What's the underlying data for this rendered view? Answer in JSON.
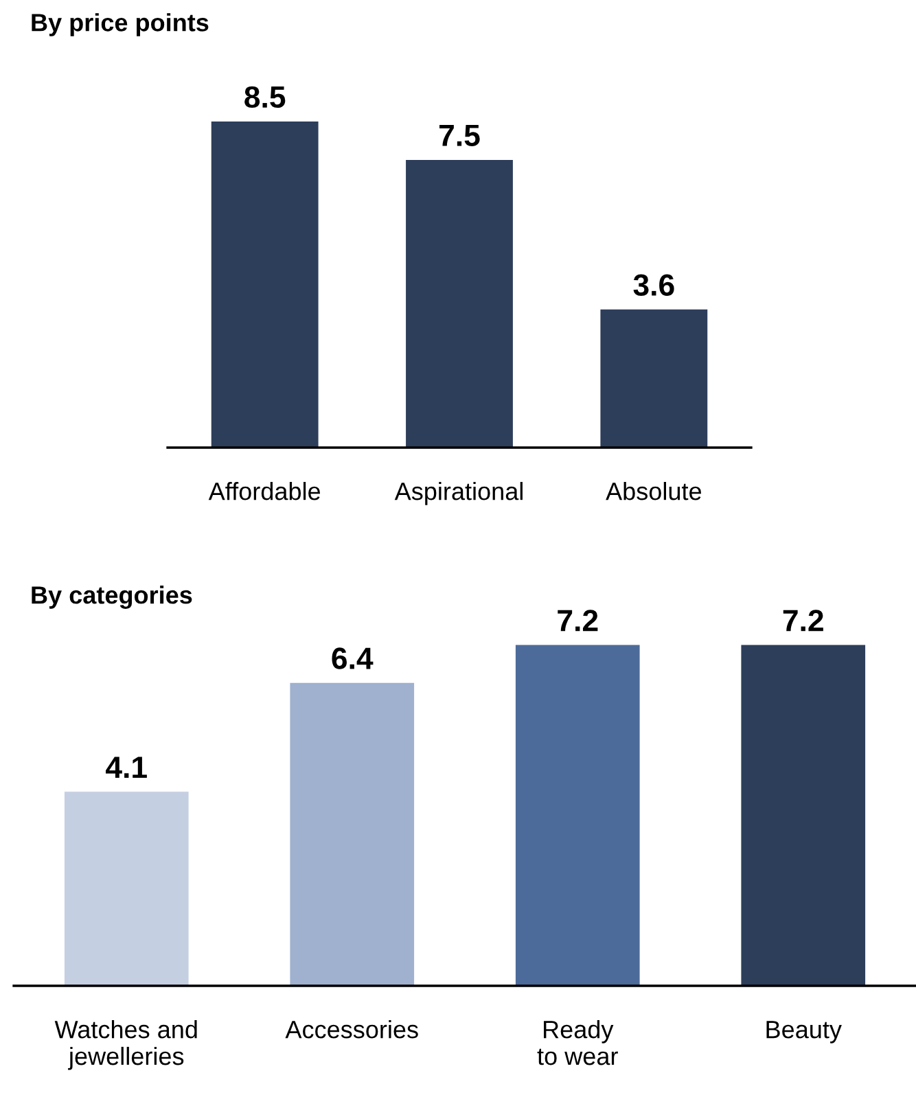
{
  "chart_data": [
    {
      "type": "bar",
      "title": "By price points",
      "categories": [
        "Affordable",
        "Aspirational",
        "Absolute"
      ],
      "values": [
        8.5,
        7.5,
        3.6
      ],
      "color": "#2d3e5a",
      "data_labels": true,
      "grid": false,
      "legend": false
    },
    {
      "type": "bar",
      "title": "By categories",
      "categories": [
        "Watches and\njewelleries",
        "Accessories",
        "Ready\nto wear",
        "Beauty"
      ],
      "values": [
        4.1,
        6.4,
        7.2,
        7.2
      ],
      "colors": [
        "#c5cfe2",
        "#9fb1cf",
        "#4d6b9a",
        "#2d3e5a"
      ],
      "data_labels": true,
      "grid": false,
      "legend": false
    }
  ]
}
